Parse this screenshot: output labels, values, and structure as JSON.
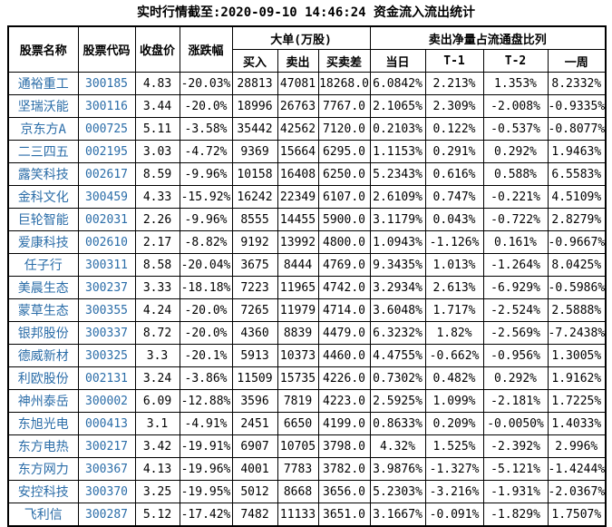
{
  "title": "实时行情截至:2020-09-10 14:46:24 资金流入流出统计",
  "colors": {
    "stock_link_blue": "#2b6da8",
    "text_black": "#000000",
    "border_black": "#000000",
    "background": "#ffffff"
  },
  "table": {
    "headers": {
      "stock_name": "股票名称",
      "stock_code": "股票代码",
      "close_price": "收盘价",
      "change_pct": "涨跌幅",
      "large_orders_group": "大单(万股)",
      "buy": "买入",
      "sell": "卖出",
      "buy_sell_diff": "买卖差",
      "net_sell_ratio_group": "卖出净量占流通盘比列",
      "today": "当日",
      "t_minus_1": "T-1",
      "t_minus_2": "T-2",
      "week": "一周"
    },
    "rows": [
      [
        "通裕重工",
        "300185",
        "4.83",
        "-20.03%",
        "28813",
        "47081",
        "18268.0",
        "6.0842%",
        "2.213%",
        "1.353%",
        "8.2332%"
      ],
      [
        "坚瑞沃能",
        "300116",
        "3.44",
        "-20.0%",
        "18996",
        "26763",
        "7767.0",
        "2.1065%",
        "2.309%",
        "-2.008%",
        "-0.9335%"
      ],
      [
        "京东方A",
        "000725",
        "5.11",
        "-3.58%",
        "35442",
        "42562",
        "7120.0",
        "0.2103%",
        "0.122%",
        "-0.537%",
        "-0.8077%"
      ],
      [
        "二三四五",
        "002195",
        "3.03",
        "-4.72%",
        "9369",
        "15664",
        "6295.0",
        "1.1153%",
        "0.291%",
        "0.292%",
        "1.9463%"
      ],
      [
        "露笑科技",
        "002617",
        "8.59",
        "-9.96%",
        "10158",
        "16408",
        "6250.0",
        "5.2343%",
        "0.616%",
        "0.588%",
        "6.5583%"
      ],
      [
        "金科文化",
        "300459",
        "4.33",
        "-15.92%",
        "16242",
        "22349",
        "6107.0",
        "2.6109%",
        "0.747%",
        "-0.221%",
        "4.5109%"
      ],
      [
        "巨轮智能",
        "002031",
        "2.26",
        "-9.96%",
        "8555",
        "14455",
        "5900.0",
        "3.1179%",
        "0.043%",
        "-0.722%",
        "2.8279%"
      ],
      [
        "爱康科技",
        "002610",
        "2.17",
        "-8.82%",
        "9192",
        "13992",
        "4800.0",
        "1.0943%",
        "-1.126%",
        "0.161%",
        "-0.9667%"
      ],
      [
        "任子行",
        "300311",
        "8.58",
        "-20.04%",
        "3675",
        "8444",
        "4769.0",
        "9.3435%",
        "1.013%",
        "-1.264%",
        "8.0425%"
      ],
      [
        "美晨生态",
        "300237",
        "3.33",
        "-18.18%",
        "7223",
        "11965",
        "4742.0",
        "3.2934%",
        "2.613%",
        "-6.929%",
        "-0.5986%"
      ],
      [
        "蒙草生态",
        "300355",
        "4.24",
        "-20.0%",
        "7265",
        "11979",
        "4714.0",
        "3.6048%",
        "1.717%",
        "-2.524%",
        "2.5888%"
      ],
      [
        "银邦股份",
        "300337",
        "8.72",
        "-20.0%",
        "4360",
        "8839",
        "4479.0",
        "6.3232%",
        "1.82%",
        "-2.569%",
        "-7.2438%"
      ],
      [
        "德威新材",
        "300325",
        "3.3",
        "-20.1%",
        "5913",
        "10373",
        "4460.0",
        "4.4755%",
        "-0.662%",
        "-0.956%",
        "1.3005%"
      ],
      [
        "利欧股份",
        "002131",
        "3.24",
        "-3.86%",
        "11509",
        "15735",
        "4226.0",
        "0.7302%",
        "0.482%",
        "0.292%",
        "1.9162%"
      ],
      [
        "神州泰岳",
        "300002",
        "6.09",
        "-12.88%",
        "3596",
        "7819",
        "4223.0",
        "2.5925%",
        "1.099%",
        "-2.181%",
        "1.7225%"
      ],
      [
        "东旭光电",
        "000413",
        "3.1",
        "-4.91%",
        "2451",
        "6650",
        "4199.0",
        "0.8633%",
        "0.209%",
        "-0.0050%",
        "1.4033%"
      ],
      [
        "东方电热",
        "300217",
        "3.42",
        "-19.91%",
        "6907",
        "10705",
        "3798.0",
        "4.32%",
        "1.525%",
        "-2.392%",
        "2.996%"
      ],
      [
        "东方网力",
        "300367",
        "4.13",
        "-19.96%",
        "4001",
        "7783",
        "3782.0",
        "3.9876%",
        "-1.327%",
        "-5.121%",
        "-1.4244%"
      ],
      [
        "安控科技",
        "300370",
        "3.25",
        "-19.95%",
        "5012",
        "8668",
        "3656.0",
        "5.2303%",
        "-3.216%",
        "-1.931%",
        "-2.0367%"
      ],
      [
        "飞利信",
        "300287",
        "5.12",
        "-17.42%",
        "7482",
        "11133",
        "3651.0",
        "3.1667%",
        "-0.091%",
        "-1.829%",
        "1.7507%"
      ]
    ]
  }
}
